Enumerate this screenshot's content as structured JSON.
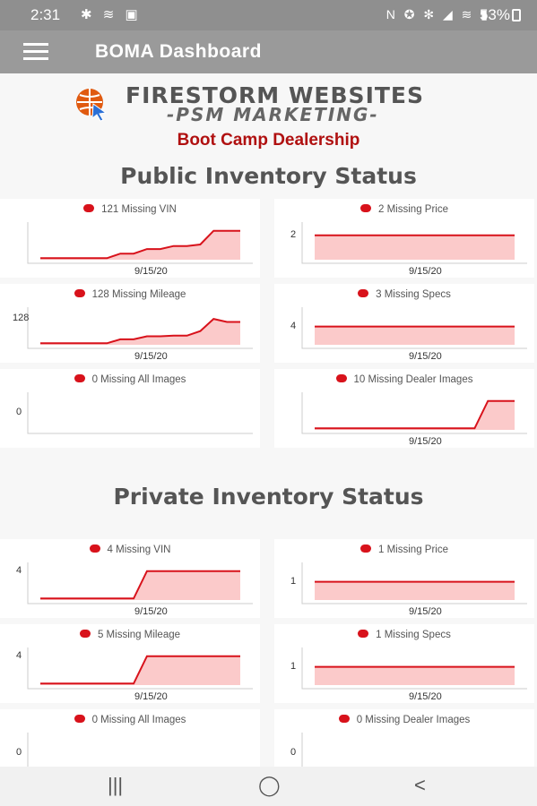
{
  "status_bar": {
    "time": "2:31",
    "left_icons": "✱ ≋ ▣",
    "right_icons": "N ✪ ✻ ◢ ≋ ▮",
    "battery": "53%"
  },
  "app_bar": {
    "title": "BOMA Dashboard"
  },
  "logo": {
    "line1": "FIRESTORM WEBSITES",
    "line2": "-PSM MARKETING-"
  },
  "dealership": "Boot Camp Dealership",
  "sections": {
    "public": "Public Inventory Status",
    "private": "Private Inventory Status"
  },
  "colors": {
    "line": "#d8121b",
    "fill": "#fbcaca",
    "axis": "#cccccc"
  },
  "chart_data": [
    {
      "type": "area",
      "id": "pub-vin",
      "legend": "121 Missing VIN",
      "ytick": "",
      "xlabel": "9/15/20",
      "series": [
        {
          "values": [
            0.05,
            0.05,
            0.05,
            0.05,
            0.05,
            0.05,
            0.2,
            0.2,
            0.35,
            0.35,
            0.45,
            0.45,
            0.5,
            0.95,
            0.95,
            0.95
          ]
        }
      ]
    },
    {
      "type": "area",
      "id": "pub-price",
      "legend": "2 Missing Price",
      "ytick": "2",
      "xlabel": "9/15/20",
      "series": [
        {
          "values": [
            0.8,
            0.8,
            0.8,
            0.8,
            0.8,
            0.8,
            0.8,
            0.8,
            0.8,
            0.8,
            0.8,
            0.8,
            0.8,
            0.8,
            0.8,
            0.8
          ]
        }
      ]
    },
    {
      "type": "area",
      "id": "pub-mileage",
      "legend": "128 Missing Mileage",
      "ytick": "128",
      "xlabel": "9/15/20",
      "series": [
        {
          "values": [
            0.05,
            0.05,
            0.05,
            0.05,
            0.05,
            0.05,
            0.18,
            0.18,
            0.28,
            0.28,
            0.3,
            0.3,
            0.45,
            0.85,
            0.75,
            0.75
          ]
        }
      ]
    },
    {
      "type": "area",
      "id": "pub-specs",
      "legend": "3 Missing Specs",
      "ytick": "4",
      "xlabel": "9/15/20",
      "series": [
        {
          "values": [
            0.6,
            0.6,
            0.6,
            0.6,
            0.6,
            0.6,
            0.6,
            0.6,
            0.6,
            0.6,
            0.6,
            0.6,
            0.6,
            0.6,
            0.6,
            0.6
          ]
        }
      ]
    },
    {
      "type": "area",
      "id": "pub-images",
      "legend": "0 Missing All Images",
      "ytick": "0",
      "xlabel": "",
      "series": [
        {
          "values": []
        }
      ]
    },
    {
      "type": "area",
      "id": "pub-dealer-images",
      "legend": "10 Missing Dealer Images",
      "ytick": "",
      "xlabel": "9/15/20",
      "series": [
        {
          "values": [
            0.05,
            0.05,
            0.05,
            0.05,
            0.05,
            0.05,
            0.05,
            0.05,
            0.05,
            0.05,
            0.05,
            0.05,
            0.05,
            0.95,
            0.95,
            0.95
          ]
        }
      ]
    },
    {
      "type": "area",
      "id": "priv-vin",
      "legend": "4 Missing VIN",
      "ytick": "4",
      "xlabel": "9/15/20",
      "series": [
        {
          "values": [
            0.05,
            0.05,
            0.05,
            0.05,
            0.05,
            0.05,
            0.05,
            0.05,
            0.95,
            0.95,
            0.95,
            0.95,
            0.95,
            0.95,
            0.95,
            0.95
          ]
        }
      ]
    },
    {
      "type": "area",
      "id": "priv-price",
      "legend": "1 Missing Price",
      "ytick": "1",
      "xlabel": "9/15/20",
      "series": [
        {
          "values": [
            0.6,
            0.6,
            0.6,
            0.6,
            0.6,
            0.6,
            0.6,
            0.6,
            0.6,
            0.6,
            0.6,
            0.6,
            0.6,
            0.6,
            0.6,
            0.6
          ]
        }
      ]
    },
    {
      "type": "area",
      "id": "priv-mileage",
      "legend": "5 Missing Mileage",
      "ytick": "4",
      "xlabel": "9/15/20",
      "series": [
        {
          "values": [
            0.05,
            0.05,
            0.05,
            0.05,
            0.05,
            0.05,
            0.05,
            0.05,
            0.95,
            0.95,
            0.95,
            0.95,
            0.95,
            0.95,
            0.95,
            0.95
          ]
        }
      ]
    },
    {
      "type": "area",
      "id": "priv-specs",
      "legend": "1 Missing Specs",
      "ytick": "1",
      "xlabel": "9/15/20",
      "series": [
        {
          "values": [
            0.6,
            0.6,
            0.6,
            0.6,
            0.6,
            0.6,
            0.6,
            0.6,
            0.6,
            0.6,
            0.6,
            0.6,
            0.6,
            0.6,
            0.6,
            0.6
          ]
        }
      ]
    },
    {
      "type": "area",
      "id": "priv-images",
      "legend": "0 Missing All Images",
      "ytick": "0",
      "xlabel": "",
      "series": [
        {
          "values": []
        }
      ]
    },
    {
      "type": "area",
      "id": "priv-dealer-images",
      "legend": "0 Missing Dealer Images",
      "ytick": "0",
      "xlabel": "",
      "series": [
        {
          "values": []
        }
      ]
    }
  ],
  "nav_bar": {
    "recents": "|||",
    "home": "◯",
    "back": "<"
  }
}
